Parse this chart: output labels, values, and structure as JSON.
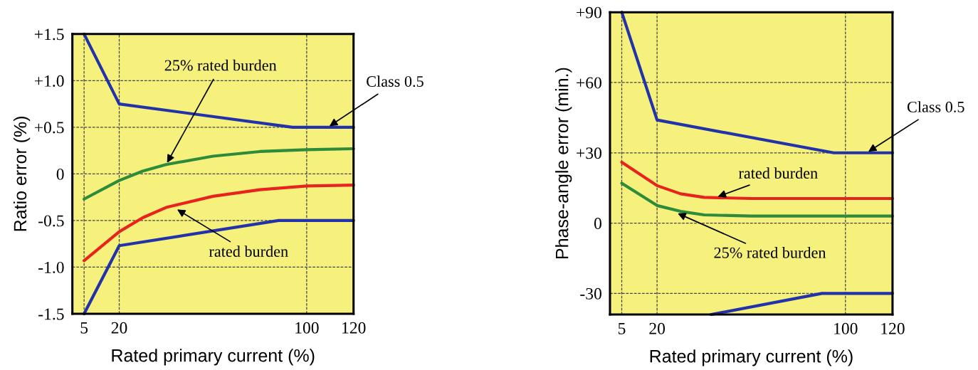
{
  "chart_data": [
    {
      "type": "line",
      "xlabel": "Rated primary current (%)",
      "ylabel": "Ratio error (%)",
      "x": [
        5,
        20,
        30,
        40,
        60,
        80,
        100,
        120
      ],
      "series": [
        {
          "color": "#2233aa",
          "x": [
            5,
            20,
            94,
            120
          ],
          "values": [
            1.5,
            0.75,
            0.5,
            0.5
          ]
        },
        {
          "color": "#2233aa",
          "x": [
            5,
            20,
            88,
            120
          ],
          "values": [
            -1.5,
            -0.77,
            -0.5,
            -0.5
          ]
        },
        {
          "color": "#2e8b3a",
          "values": [
            -0.27,
            -0.07,
            0.03,
            0.1,
            0.19,
            0.24,
            0.26,
            0.27
          ]
        },
        {
          "color": "#e8231e",
          "values": [
            -0.93,
            -0.62,
            -0.47,
            -0.36,
            -0.24,
            -0.17,
            -0.13,
            -0.12
          ]
        }
      ],
      "xlim": [
        0,
        120
      ],
      "xticks": [
        5,
        20,
        100,
        120
      ],
      "ylim": [
        -1.5,
        1.5
      ],
      "yticks": [
        {
          "value": -1.5,
          "label": "-1.5"
        },
        {
          "value": -1.0,
          "label": "-1.0"
        },
        {
          "value": -0.5,
          "label": "-0.5"
        },
        0,
        {
          "value": 0.5,
          "label": "+0.5"
        },
        {
          "value": 1.0,
          "label": "+1.0"
        },
        {
          "value": 1.5,
          "label": "+1.5"
        }
      ],
      "grid": true,
      "annotations": [
        {
          "text": "25% rated burden",
          "x": 40,
          "y": 0.1
        },
        {
          "text": "rated burden",
          "x": 44,
          "y": -0.37
        },
        {
          "text": "Class 0.5",
          "x": 109,
          "y": 0.5
        }
      ]
    },
    {
      "type": "line",
      "xlabel": "Rated primary current (%)",
      "ylabel": "Phase-angle error (min.)",
      "x": [
        5,
        20,
        30,
        40,
        60,
        120
      ],
      "series": [
        {
          "color": "#2233aa",
          "x": [
            5,
            20,
            95,
            120
          ],
          "values": [
            90,
            44,
            30,
            30
          ]
        },
        {
          "color": "#2233aa",
          "x": [
            43,
            90,
            120
          ],
          "values": [
            -39,
            -30,
            -30
          ]
        },
        {
          "color": "#e8231e",
          "values": [
            26,
            16,
            12.5,
            11,
            10.5,
            10.5
          ]
        },
        {
          "color": "#2e8b3a",
          "values": [
            17,
            7.5,
            5,
            3.5,
            3,
            3
          ]
        }
      ],
      "xlim": [
        0,
        120
      ],
      "xticks": [
        5,
        20,
        100,
        120
      ],
      "ylim": [
        -39,
        90
      ],
      "yticks": [
        {
          "value": -30,
          "label": "-30"
        },
        0,
        {
          "value": 30,
          "label": "+30"
        },
        {
          "value": 60,
          "label": "+60"
        },
        {
          "value": 90,
          "label": "+90"
        }
      ],
      "grid": true,
      "annotations": [
        {
          "text": "Class 0.5",
          "x": 109,
          "y": 30
        },
        {
          "text": "rated burden",
          "x": 45,
          "y": 11
        },
        {
          "text": "25% rated burden",
          "x": 28,
          "y": 4.5
        }
      ]
    }
  ]
}
